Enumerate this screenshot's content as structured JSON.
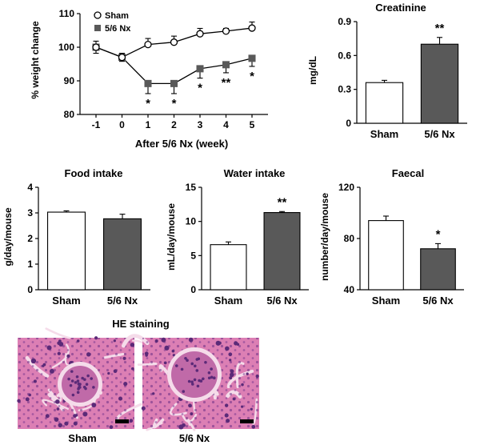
{
  "chart_data": [
    {
      "type": "line",
      "ylabel": "% weight change",
      "xlabel": "After 5/6 Nx (week)",
      "x": [
        -1,
        0,
        1,
        2,
        3,
        4,
        5
      ],
      "xtick_labels": [
        "-1",
        "0",
        "1",
        "2",
        "3",
        "4",
        "5"
      ],
      "ylim": [
        80,
        110
      ],
      "yticks": [
        80,
        90,
        100,
        110
      ],
      "legend": "top-left",
      "series": [
        {
          "name": "Sham",
          "marker": "open-circle",
          "values": [
            100,
            97,
            100.8,
            101.5,
            104,
            104.8,
            105.7
          ],
          "errors": [
            1.8,
            1.2,
            1.8,
            1.8,
            1.6,
            0.8,
            1.8
          ]
        },
        {
          "name": "5/6 Nx",
          "marker": "filled-square",
          "values": [
            100,
            97,
            89.2,
            89.2,
            93.6,
            94.8,
            96.7
          ],
          "errors": [
            1.8,
            1.2,
            3.0,
            3.0,
            2.8,
            2.4,
            2.4
          ]
        }
      ],
      "annotations": [
        {
          "x": 1,
          "text": "*"
        },
        {
          "x": 2,
          "text": "*"
        },
        {
          "x": 3,
          "text": "*"
        },
        {
          "x": 4,
          "text": "**"
        },
        {
          "x": 5,
          "text": "*"
        }
      ]
    },
    {
      "type": "bar",
      "title": "Creatinine",
      "ylabel": "mg/dL",
      "categories": [
        "Sham",
        "5/6 Nx"
      ],
      "values": [
        0.36,
        0.7
      ],
      "errors": [
        0.02,
        0.06
      ],
      "ylim": [
        0,
        0.9
      ],
      "yticks": [
        "0",
        "0.3",
        "0.6",
        "0.9"
      ],
      "colors": [
        "#ffffff",
        "#595959"
      ],
      "annotations": [
        {
          "category": "5/6 Nx",
          "text": "**"
        }
      ]
    },
    {
      "type": "bar",
      "title": "Food intake",
      "ylabel": "g/day/mouse",
      "categories": [
        "Sham",
        "5/6 Nx"
      ],
      "values": [
        3.03,
        2.77
      ],
      "errors": [
        0.05,
        0.18
      ],
      "ylim": [
        0,
        4
      ],
      "yticks": [
        "0",
        "1",
        "2",
        "3",
        "4"
      ],
      "colors": [
        "#ffffff",
        "#595959"
      ],
      "annotations": []
    },
    {
      "type": "bar",
      "title": "Water intake",
      "ylabel": "mL/day/mouse",
      "categories": [
        "Sham",
        "5/6 Nx"
      ],
      "values": [
        6.6,
        11.3
      ],
      "errors": [
        0.4,
        0.15
      ],
      "ylim": [
        0,
        15
      ],
      "yticks": [
        "0",
        "5",
        "10",
        "15"
      ],
      "colors": [
        "#ffffff",
        "#595959"
      ],
      "annotations": [
        {
          "category": "5/6 Nx",
          "text": "**"
        }
      ]
    },
    {
      "type": "bar",
      "title": "Faecal",
      "ylabel": "number/day/mouse",
      "categories": [
        "Sham",
        "5/6 Nx"
      ],
      "values": [
        94,
        72
      ],
      "errors": [
        3.5,
        4
      ],
      "ylim": [
        40,
        120
      ],
      "yticks": [
        "40",
        "80",
        "120"
      ],
      "colors": [
        "#ffffff",
        "#595959"
      ],
      "annotations": [
        {
          "category": "5/6 Nx",
          "text": "*"
        }
      ]
    }
  ],
  "histology": {
    "title": "HE staining",
    "panels": [
      {
        "label": "Sham",
        "image": "kidney-histology-sham"
      },
      {
        "label": "5/6 Nx",
        "image": "kidney-histology-5-6-nx"
      }
    ],
    "colors": {
      "tissue": "#dc7fb4",
      "nuclei": "#5b2a78",
      "lumen": "#f5dcea",
      "scale_bar": "#000000"
    }
  }
}
